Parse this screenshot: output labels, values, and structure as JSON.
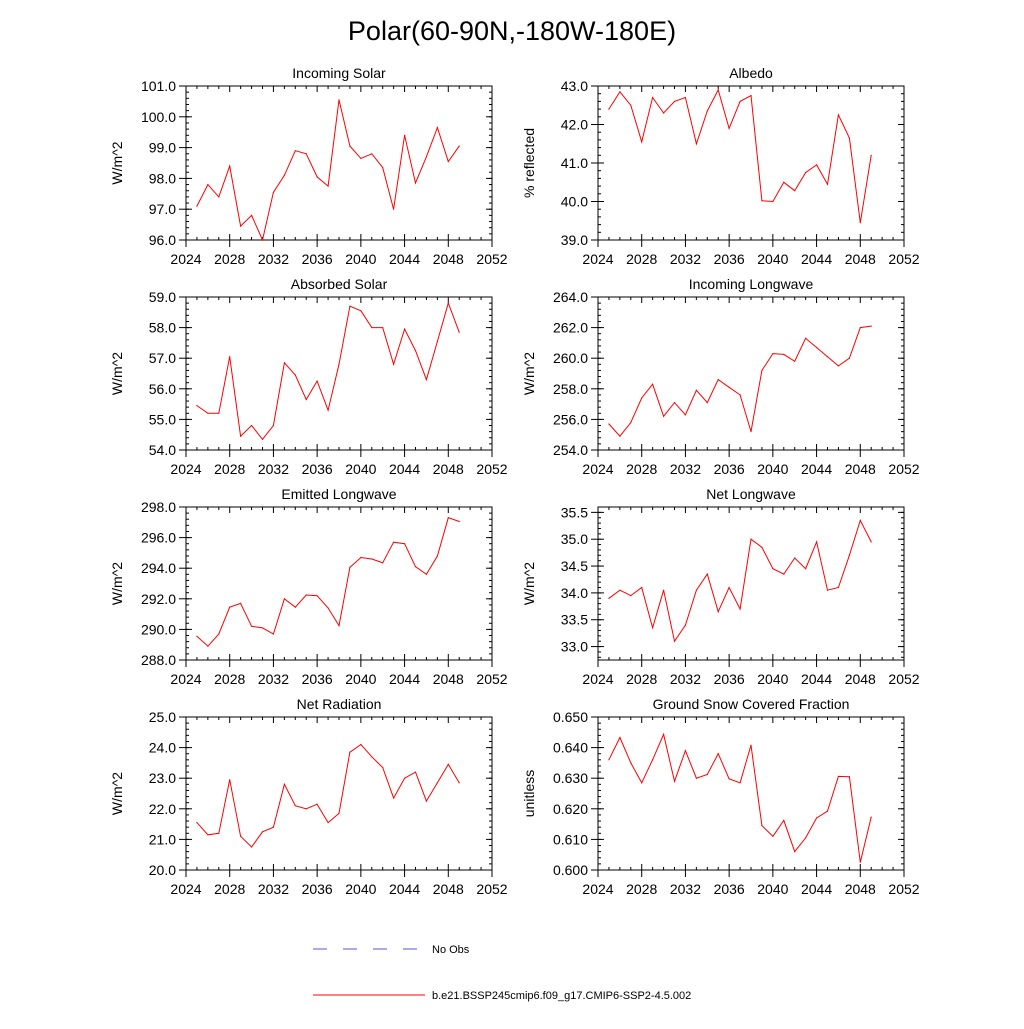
{
  "page": {
    "title": "Polar(60-90N,-180W-180E)",
    "legend": {
      "obs_label": "No Obs",
      "obs_color": "#5555cc",
      "model_label": "b.e21.BSSP245cmip6.f09_g17.CMIP6-SSP2-4.5.002",
      "model_color": "#ff0000"
    }
  },
  "chart_data": [
    {
      "type": "line",
      "title": "Incoming Solar",
      "xlabel": "",
      "ylabel": "W/m^2",
      "xlim": [
        2024,
        2052
      ],
      "xticks": [
        "2024",
        "2028",
        "2032",
        "2036",
        "2040",
        "2044",
        "2048",
        "2052"
      ],
      "ylim": [
        96.0,
        101.0
      ],
      "yticks": [
        "96.0",
        "97.0",
        "98.0",
        "99.0",
        "100.0",
        "101.0"
      ],
      "series": [
        {
          "name": "b.e21.BSSP245cmip6.f09_g17.CMIP6-SSP2-4.5.002",
          "x": [
            2025,
            2026,
            2027,
            2028,
            2029,
            2030,
            2031,
            2032,
            2033,
            2034,
            2035,
            2036,
            2037,
            2038,
            2039,
            2040,
            2041,
            2042,
            2043,
            2044,
            2045,
            2046,
            2047,
            2048,
            2049
          ],
          "values": [
            97.1,
            97.8,
            97.4,
            98.4,
            96.45,
            96.8,
            96.0,
            97.55,
            98.1,
            98.9,
            98.8,
            98.05,
            97.75,
            100.55,
            99.05,
            98.65,
            98.8,
            98.35,
            97.0,
            99.4,
            97.85,
            98.7,
            99.65,
            98.55,
            99.05
          ]
        }
      ]
    },
    {
      "type": "line",
      "title": "Albedo",
      "xlabel": "",
      "ylabel": "% reflected",
      "xlim": [
        2024,
        2052
      ],
      "xticks": [
        "2024",
        "2028",
        "2032",
        "2036",
        "2040",
        "2044",
        "2048",
        "2052"
      ],
      "ylim": [
        39.0,
        43.0
      ],
      "yticks": [
        "39.0",
        "40.0",
        "41.0",
        "42.0",
        "43.0"
      ],
      "series": [
        {
          "name": "b.e21.BSSP245cmip6.f09_g17.CMIP6-SSP2-4.5.002",
          "x": [
            2025,
            2026,
            2027,
            2028,
            2029,
            2030,
            2031,
            2032,
            2033,
            2034,
            2035,
            2036,
            2037,
            2038,
            2039,
            2040,
            2041,
            2042,
            2043,
            2044,
            2045,
            2046,
            2047,
            2048,
            2049
          ],
          "values": [
            42.4,
            42.85,
            42.5,
            41.55,
            42.7,
            42.3,
            42.6,
            42.7,
            41.5,
            42.35,
            42.9,
            41.9,
            42.6,
            42.75,
            40.02,
            40.0,
            40.5,
            40.28,
            40.75,
            40.95,
            40.45,
            42.25,
            41.65,
            39.45,
            41.2
          ]
        }
      ]
    },
    {
      "type": "line",
      "title": "Absorbed Solar",
      "xlabel": "",
      "ylabel": "W/m^2",
      "xlim": [
        2024,
        2052
      ],
      "xticks": [
        "2024",
        "2028",
        "2032",
        "2036",
        "2040",
        "2044",
        "2048",
        "2052"
      ],
      "ylim": [
        54.0,
        59.0
      ],
      "yticks": [
        "54.0",
        "55.0",
        "56.0",
        "57.0",
        "58.0",
        "59.0"
      ],
      "series": [
        {
          "name": "b.e21.BSSP245cmip6.f09_g17.CMIP6-SSP2-4.5.002",
          "x": [
            2025,
            2026,
            2027,
            2028,
            2029,
            2030,
            2031,
            2032,
            2033,
            2034,
            2035,
            2036,
            2037,
            2038,
            2039,
            2040,
            2041,
            2042,
            2043,
            2044,
            2045,
            2046,
            2047,
            2048,
            2049
          ],
          "values": [
            55.45,
            55.2,
            55.2,
            57.05,
            54.45,
            54.8,
            54.35,
            54.8,
            56.85,
            56.45,
            55.65,
            56.25,
            55.3,
            56.8,
            58.7,
            58.55,
            58.0,
            58.0,
            56.8,
            57.95,
            57.25,
            56.3,
            57.55,
            58.8,
            57.85
          ]
        }
      ]
    },
    {
      "type": "line",
      "title": "Incoming Longwave",
      "xlabel": "",
      "ylabel": "W/m^2",
      "xlim": [
        2024,
        2052
      ],
      "xticks": [
        "2024",
        "2028",
        "2032",
        "2036",
        "2040",
        "2044",
        "2048",
        "2052"
      ],
      "ylim": [
        254.0,
        264.0
      ],
      "yticks": [
        "254.0",
        "256.0",
        "258.0",
        "260.0",
        "262.0",
        "264.0"
      ],
      "series": [
        {
          "name": "b.e21.BSSP245cmip6.f09_g17.CMIP6-SSP2-4.5.002",
          "x": [
            2025,
            2026,
            2027,
            2028,
            2029,
            2030,
            2031,
            2032,
            2033,
            2034,
            2035,
            2036,
            2037,
            2038,
            2039,
            2040,
            2041,
            2042,
            2043,
            2044,
            2045,
            2046,
            2047,
            2048,
            2049
          ],
          "values": [
            255.7,
            254.9,
            255.8,
            257.4,
            258.3,
            256.2,
            257.1,
            256.3,
            257.9,
            257.1,
            258.6,
            258.1,
            257.6,
            255.2,
            259.2,
            260.3,
            260.25,
            259.8,
            261.3,
            260.7,
            260.1,
            259.5,
            260.0,
            262.0,
            262.1
          ]
        }
      ]
    },
    {
      "type": "line",
      "title": "Emitted Longwave",
      "xlabel": "",
      "ylabel": "W/m^2",
      "xlim": [
        2024,
        2052
      ],
      "xticks": [
        "2024",
        "2028",
        "2032",
        "2036",
        "2040",
        "2044",
        "2048",
        "2052"
      ],
      "ylim": [
        288.0,
        298.0
      ],
      "yticks": [
        "288.0",
        "290.0",
        "292.0",
        "294.0",
        "296.0",
        "298.0"
      ],
      "series": [
        {
          "name": "b.e21.BSSP245cmip6.f09_g17.CMIP6-SSP2-4.5.002",
          "x": [
            2025,
            2026,
            2027,
            2028,
            2029,
            2030,
            2031,
            2032,
            2033,
            2034,
            2035,
            2036,
            2037,
            2038,
            2039,
            2040,
            2041,
            2042,
            2043,
            2044,
            2045,
            2046,
            2047,
            2048,
            2049
          ],
          "values": [
            289.55,
            288.9,
            289.7,
            291.45,
            291.7,
            290.2,
            290.1,
            289.7,
            292.0,
            291.45,
            292.25,
            292.2,
            291.4,
            290.25,
            294.05,
            294.7,
            294.6,
            294.35,
            295.7,
            295.6,
            294.1,
            293.6,
            294.8,
            297.3,
            297.05
          ]
        }
      ]
    },
    {
      "type": "line",
      "title": "Net Longwave",
      "xlabel": "",
      "ylabel": "W/m^2",
      "xlim": [
        2024,
        2052
      ],
      "xticks": [
        "2024",
        "2028",
        "2032",
        "2036",
        "2040",
        "2044",
        "2048",
        "2052"
      ],
      "ylim": [
        32.75,
        35.6
      ],
      "yticks": [
        "33.0",
        "33.5",
        "34.0",
        "34.5",
        "35.0",
        "35.5"
      ],
      "series": [
        {
          "name": "b.e21.BSSP245cmip6.f09_g17.CMIP6-SSP2-4.5.002",
          "x": [
            2025,
            2026,
            2027,
            2028,
            2029,
            2030,
            2031,
            2032,
            2033,
            2034,
            2035,
            2036,
            2037,
            2038,
            2039,
            2040,
            2041,
            2042,
            2043,
            2044,
            2045,
            2046,
            2047,
            2048,
            2049
          ],
          "values": [
            33.9,
            34.05,
            33.95,
            34.1,
            33.35,
            34.05,
            33.1,
            33.4,
            34.05,
            34.35,
            33.65,
            34.1,
            33.7,
            35.0,
            34.85,
            34.45,
            34.35,
            34.65,
            34.45,
            34.95,
            34.05,
            34.1,
            34.7,
            35.35,
            34.95
          ]
        }
      ]
    },
    {
      "type": "line",
      "title": "Net Radiation",
      "xlabel": "",
      "ylabel": "W/m^2",
      "xlim": [
        2024,
        2052
      ],
      "xticks": [
        "2024",
        "2028",
        "2032",
        "2036",
        "2040",
        "2044",
        "2048",
        "2052"
      ],
      "ylim": [
        20.0,
        25.0
      ],
      "yticks": [
        "20.0",
        "21.0",
        "22.0",
        "23.0",
        "24.0",
        "25.0"
      ],
      "series": [
        {
          "name": "b.e21.BSSP245cmip6.f09_g17.CMIP6-SSP2-4.5.002",
          "x": [
            2025,
            2026,
            2027,
            2028,
            2029,
            2030,
            2031,
            2032,
            2033,
            2034,
            2035,
            2036,
            2037,
            2038,
            2039,
            2040,
            2041,
            2042,
            2043,
            2044,
            2045,
            2046,
            2047,
            2048,
            2049
          ],
          "values": [
            21.55,
            21.15,
            21.2,
            22.95,
            21.1,
            20.75,
            21.25,
            21.4,
            22.8,
            22.1,
            22.0,
            22.15,
            21.55,
            21.85,
            23.85,
            24.1,
            23.7,
            23.35,
            22.35,
            23.0,
            23.2,
            22.25,
            22.85,
            23.45,
            22.85
          ]
        }
      ]
    },
    {
      "type": "line",
      "title": "Ground Snow Covered Fraction",
      "xlabel": "",
      "ylabel": "unitless",
      "xlim": [
        2024,
        2052
      ],
      "xticks": [
        "2024",
        "2028",
        "2032",
        "2036",
        "2040",
        "2044",
        "2048",
        "2052"
      ],
      "ylim": [
        0.6,
        0.65
      ],
      "yticks": [
        "0.600",
        "0.610",
        "0.620",
        "0.630",
        "0.640",
        "0.650"
      ],
      "series": [
        {
          "name": "b.e21.BSSP245cmip6.f09_g17.CMIP6-SSP2-4.5.002",
          "x": [
            2025,
            2026,
            2027,
            2028,
            2029,
            2030,
            2031,
            2032,
            2033,
            2034,
            2035,
            2036,
            2037,
            2038,
            2039,
            2040,
            2041,
            2042,
            2043,
            2044,
            2045,
            2046,
            2047,
            2048,
            2049
          ],
          "values": [
            0.636,
            0.6433,
            0.635,
            0.6285,
            0.636,
            0.6443,
            0.629,
            0.639,
            0.63,
            0.6312,
            0.638,
            0.6298,
            0.6285,
            0.6408,
            0.6145,
            0.611,
            0.6162,
            0.606,
            0.6105,
            0.617,
            0.6192,
            0.6306,
            0.6305,
            0.6025,
            0.6173
          ]
        }
      ]
    }
  ]
}
